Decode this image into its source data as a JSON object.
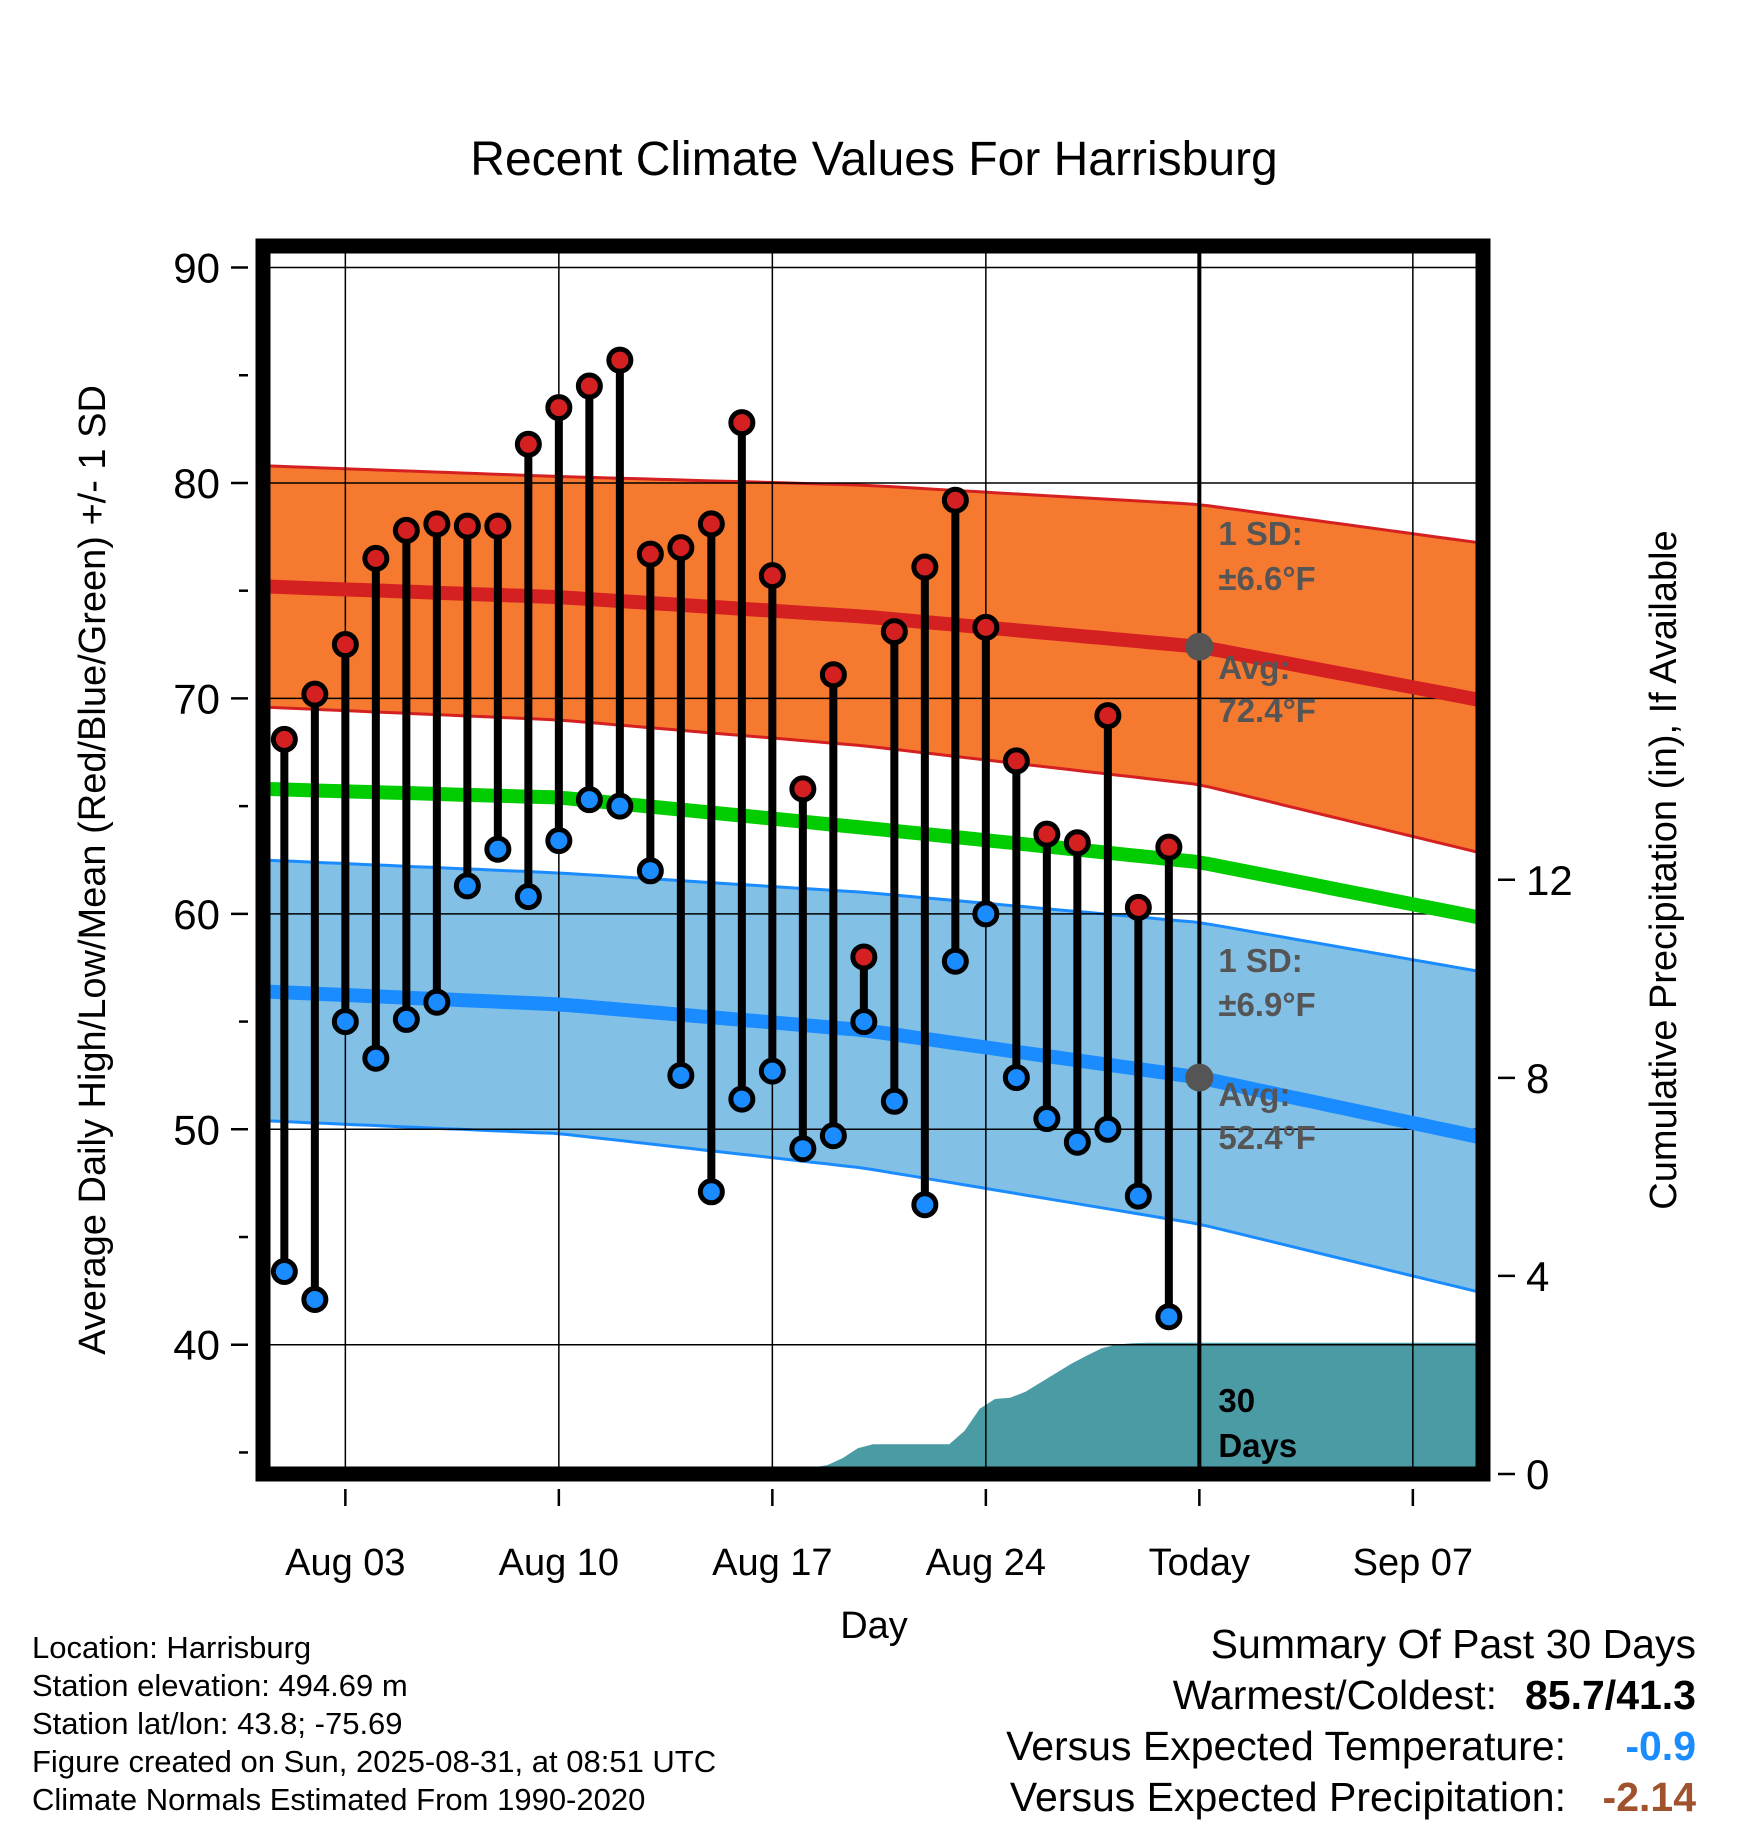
{
  "chart_data": {
    "type": "line",
    "title": "Recent Climate Values For Harrisburg",
    "xlabel": "Day",
    "ylabel": "Average Daily High/Low/Mean (Red/Blue/Green) +/- 1 SD",
    "y2label": "Cumulative Precipitation (in), If Available",
    "ylim": [
      34,
      91
    ],
    "y2lim": [
      0,
      24.8
    ],
    "yticks": [
      40,
      50,
      60,
      70,
      80,
      90
    ],
    "y2ticks": [
      0,
      4,
      8,
      12
    ],
    "xticks": [
      {
        "day": 3,
        "label": "Aug 03"
      },
      {
        "day": 10,
        "label": "Aug 10"
      },
      {
        "day": 17,
        "label": "Aug 17"
      },
      {
        "day": 24,
        "label": "Aug 24"
      },
      {
        "day": 31,
        "label": "Today"
      },
      {
        "day": 38,
        "label": "Sep 07"
      }
    ],
    "xlim": [
      0.3,
      40.3
    ],
    "days": [
      1,
      2,
      3,
      4,
      5,
      6,
      7,
      8,
      9,
      10,
      11,
      12,
      13,
      14,
      15,
      16,
      17,
      18,
      19,
      20,
      21,
      22,
      23,
      24,
      25,
      26,
      27,
      28,
      29,
      30
    ],
    "daily_high": [
      68.1,
      70.2,
      72.5,
      76.5,
      77.8,
      78.1,
      78.0,
      78.0,
      81.8,
      83.5,
      84.5,
      85.7,
      76.7,
      77.0,
      78.1,
      82.8,
      75.7,
      65.8,
      71.1,
      58.0,
      73.1,
      76.1,
      79.2,
      73.3,
      67.1,
      63.7,
      63.3,
      69.2,
      60.3,
      63.1
    ],
    "daily_low": [
      43.4,
      42.1,
      55.0,
      53.3,
      55.1,
      55.9,
      61.3,
      63.0,
      60.8,
      63.4,
      65.3,
      65.0,
      62.0,
      52.5,
      47.1,
      51.4,
      52.7,
      49.1,
      49.7,
      55.0,
      51.3,
      46.5,
      57.8,
      60.0,
      52.4,
      50.5,
      49.4,
      50.0,
      46.9,
      41.3
    ],
    "normals": {
      "days": [
        0.3,
        10,
        20,
        31,
        40.3
      ],
      "high_avg": [
        75.2,
        74.7,
        73.8,
        72.4,
        69.9
      ],
      "high_sd_upper": [
        80.8,
        80.3,
        79.9,
        79.0,
        77.2
      ],
      "high_sd_lower": [
        69.6,
        69.0,
        67.8,
        66.0,
        62.8
      ],
      "mean_avg": [
        65.8,
        65.4,
        64.0,
        62.4,
        59.8
      ],
      "low_avg": [
        56.4,
        55.8,
        54.6,
        52.4,
        49.6
      ],
      "low_sd_upper": [
        62.5,
        61.9,
        61.0,
        59.6,
        57.3
      ],
      "low_sd_lower": [
        50.4,
        49.8,
        48.2,
        45.6,
        42.4
      ]
    },
    "precip_cumulative": {
      "days": [
        0.3,
        13,
        18,
        19,
        20,
        22,
        23,
        24,
        25,
        27,
        28,
        29,
        30,
        31,
        40.3
      ],
      "values": [
        0,
        0.05,
        0.1,
        0.2,
        0.6,
        0.6,
        0.6,
        1.5,
        1.55,
        2.3,
        2.6,
        2.65,
        2.65,
        2.65,
        2.65
      ]
    },
    "annotations": {
      "high_sd_label": "1 SD:",
      "high_sd_value": "±6.6°F",
      "high_avg_label": "Avg:",
      "high_avg_value": "72.4°F",
      "low_sd_label": "1 SD:",
      "low_sd_value": "±6.9°F",
      "low_avg_label": "Avg:",
      "low_avg_value": "52.4°F",
      "today_high_avg": 72.4,
      "today_low_avg": 52.4,
      "days_label_1": "30",
      "days_label_2": "Days"
    },
    "colors": {
      "high_band": "#f57a30",
      "high_line": "#d42020",
      "mean_line": "#00cc00",
      "low_band": "#82c0e6",
      "low_line": "#1a8cff",
      "precip": "#4a9ba4",
      "high_dot": "#d42020",
      "low_dot": "#1a8cff",
      "today_dot": "#555555",
      "annotation_text": "#555555"
    },
    "grid": true
  },
  "info": {
    "location": "Location: Harrisburg",
    "elevation": "Station elevation: 494.69 m",
    "latlon": "Station lat/lon: 43.8; -75.69",
    "created": "Figure created on Sun, 2025-08-31, at 08:51 UTC",
    "normals": "Climate Normals Estimated From 1990-2020"
  },
  "summary": {
    "title": "Summary Of Past 30 Days",
    "warmest_label": "Warmest/Coldest:",
    "warmest_value": "85.7/41.3",
    "temp_label": "Versus Expected Temperature:",
    "temp_value": "-0.9",
    "temp_color": "#1a8cff",
    "precip_label": "Versus Expected Precipitation:",
    "precip_value": "-2.14",
    "precip_color": "#a0522d"
  }
}
